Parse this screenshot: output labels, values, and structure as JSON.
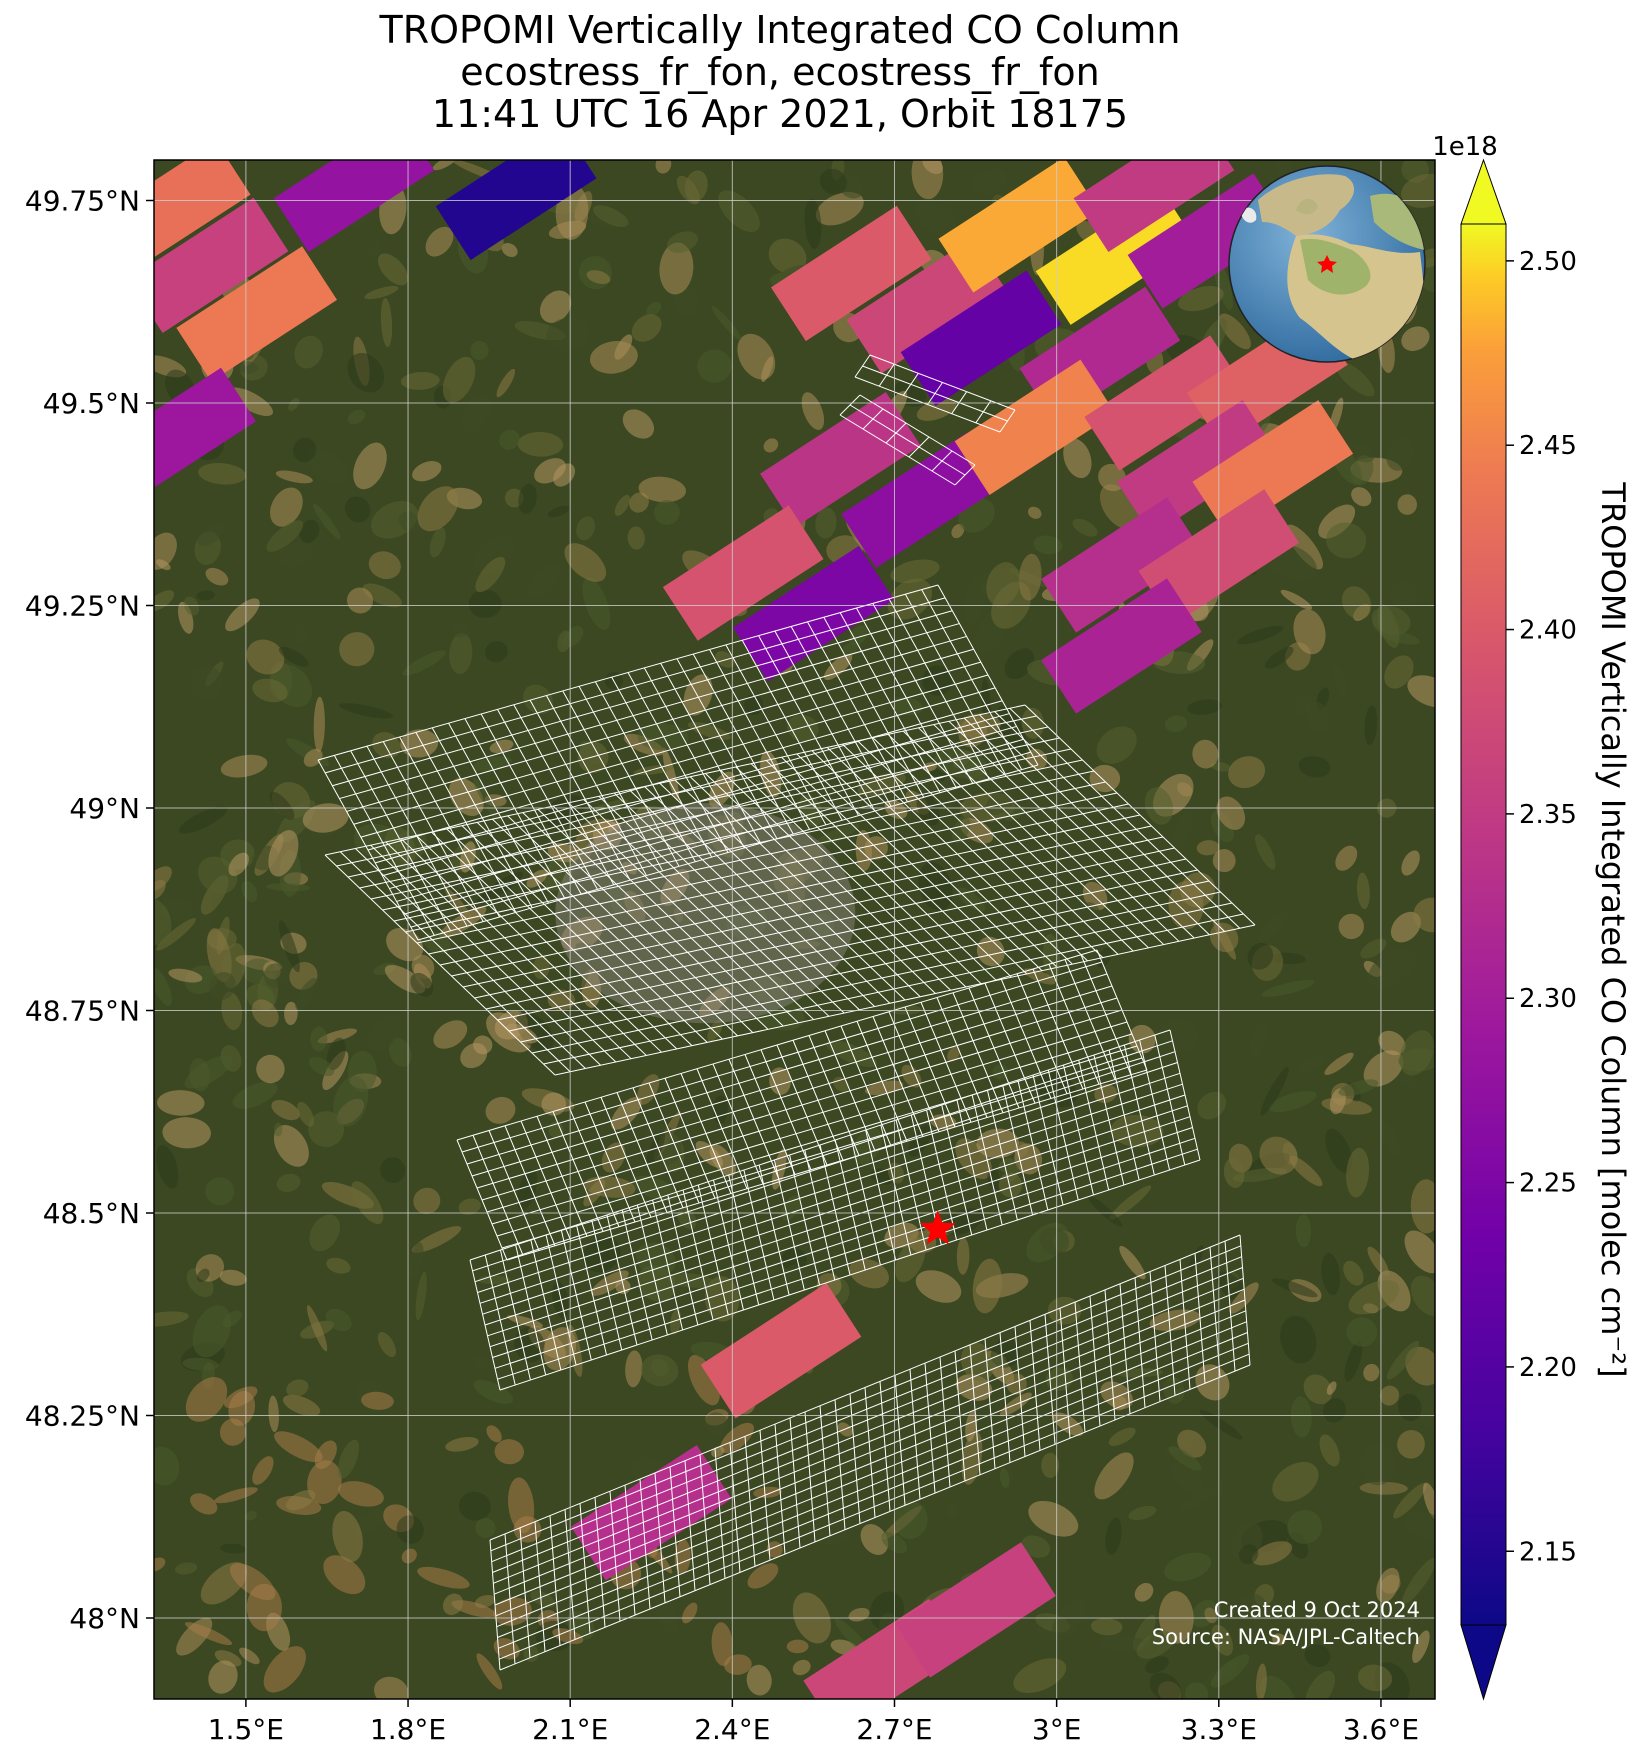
{
  "title": {
    "line1": "TROPOMI Vertically Integrated CO Column",
    "line2": "ecostress_fr_fon, ecostress_fr_fon",
    "line3": "11:41 UTC 16 Apr 2021, Orbit 18175"
  },
  "map": {
    "extent": {
      "lon": [
        1.33,
        3.7
      ],
      "lat": [
        47.9,
        49.8
      ]
    },
    "lat_ticks": [
      {
        "value": 49.75,
        "label": "49.75°N"
      },
      {
        "value": 49.5,
        "label": "49.5°N"
      },
      {
        "value": 49.25,
        "label": "49.25°N"
      },
      {
        "value": 49.0,
        "label": "49°N"
      },
      {
        "value": 48.75,
        "label": "48.75°N"
      },
      {
        "value": 48.5,
        "label": "48.5°N"
      },
      {
        "value": 48.25,
        "label": "48.25°N"
      },
      {
        "value": 48.0,
        "label": "48°N"
      }
    ],
    "lon_ticks": [
      {
        "value": 1.5,
        "label": "1.5°E"
      },
      {
        "value": 1.8,
        "label": "1.8°E"
      },
      {
        "value": 2.1,
        "label": "2.1°E"
      },
      {
        "value": 2.4,
        "label": "2.4°E"
      },
      {
        "value": 2.7,
        "label": "2.7°E"
      },
      {
        "value": 3.0,
        "label": "3°E"
      },
      {
        "value": 3.3,
        "label": "3.3°E"
      },
      {
        "value": 3.6,
        "label": "3.6°E"
      }
    ],
    "gridlines": true,
    "target_marker": {
      "lon": 2.78,
      "lat": 48.48,
      "symbol": "red-star"
    },
    "inset_globe": {
      "placement": "top-right",
      "marker": "red-star"
    }
  },
  "colorbar": {
    "label": "TROPOMI Vertically Integrated CO Column [molec cm⁻²]",
    "multiplier": "1e18",
    "colormap": "plasma",
    "range": [
      2.13,
      2.51
    ],
    "extend": "both",
    "ticks": [
      {
        "value": 2.15,
        "label": "2.15"
      },
      {
        "value": 2.2,
        "label": "2.20"
      },
      {
        "value": 2.25,
        "label": "2.25"
      },
      {
        "value": 2.3,
        "label": "2.30"
      },
      {
        "value": 2.35,
        "label": "2.35"
      },
      {
        "value": 2.4,
        "label": "2.40"
      },
      {
        "value": 2.45,
        "label": "2.45"
      },
      {
        "value": 2.5,
        "label": "2.50"
      }
    ]
  },
  "credits": {
    "created": "Created 9 Oct 2024",
    "source": "Source: NASA/JPL-Caltech"
  },
  "colors": {
    "satellite_dark": "#2f3d1e",
    "satellite_mid": "#4a5228",
    "satellite_light": "#a8884e",
    "grid": "#cfcfcf",
    "footprint_outline": "#ffffff",
    "marker": "#ff0000"
  },
  "chart_data": {
    "type": "heatmap",
    "title": "TROPOMI Vertically Integrated CO Column",
    "xlabel": "",
    "ylabel": "",
    "xlim": [
      1.33,
      3.7
    ],
    "ylim": [
      47.9,
      49.8
    ],
    "value_units": "1e18 molec cm^-2",
    "vmin": 2.13,
    "vmax": 2.51,
    "pixels": [
      {
        "lon": 1.36,
        "lat": 49.74,
        "value": 2.43
      },
      {
        "lon": 1.43,
        "lat": 49.67,
        "value": 2.36
      },
      {
        "lon": 1.52,
        "lat": 49.61,
        "value": 2.44
      },
      {
        "lon": 1.7,
        "lat": 49.77,
        "value": 2.28
      },
      {
        "lon": 2.0,
        "lat": 49.76,
        "value": 2.15
      },
      {
        "lon": 1.37,
        "lat": 49.46,
        "value": 2.29
      },
      {
        "lon": 2.62,
        "lat": 49.66,
        "value": 2.4
      },
      {
        "lon": 2.76,
        "lat": 49.62,
        "value": 2.37
      },
      {
        "lon": 2.93,
        "lat": 49.72,
        "value": 2.48
      },
      {
        "lon": 3.11,
        "lat": 49.68,
        "value": 2.5
      },
      {
        "lon": 2.86,
        "lat": 49.58,
        "value": 2.22
      },
      {
        "lon": 3.08,
        "lat": 49.56,
        "value": 2.32
      },
      {
        "lon": 3.28,
        "lat": 49.7,
        "value": 2.3
      },
      {
        "lon": 3.18,
        "lat": 49.77,
        "value": 2.35
      },
      {
        "lon": 2.6,
        "lat": 49.43,
        "value": 2.34
      },
      {
        "lon": 2.75,
        "lat": 49.38,
        "value": 2.27
      },
      {
        "lon": 2.96,
        "lat": 49.47,
        "value": 2.45
      },
      {
        "lon": 2.42,
        "lat": 49.29,
        "value": 2.39
      },
      {
        "lon": 2.55,
        "lat": 49.24,
        "value": 2.25
      },
      {
        "lon": 3.2,
        "lat": 49.5,
        "value": 2.39
      },
      {
        "lon": 3.39,
        "lat": 49.53,
        "value": 2.41
      },
      {
        "lon": 3.26,
        "lat": 49.42,
        "value": 2.35
      },
      {
        "lon": 3.4,
        "lat": 49.42,
        "value": 2.44
      },
      {
        "lon": 3.12,
        "lat": 49.3,
        "value": 2.33
      },
      {
        "lon": 3.3,
        "lat": 49.31,
        "value": 2.38
      },
      {
        "lon": 3.12,
        "lat": 49.2,
        "value": 2.31
      },
      {
        "lon": 2.25,
        "lat": 48.13,
        "value": 2.33
      },
      {
        "lon": 2.49,
        "lat": 48.33,
        "value": 2.4
      },
      {
        "lon": 2.68,
        "lat": 47.94,
        "value": 2.37
      },
      {
        "lon": 2.85,
        "lat": 48.01,
        "value": 2.36
      }
    ]
  }
}
